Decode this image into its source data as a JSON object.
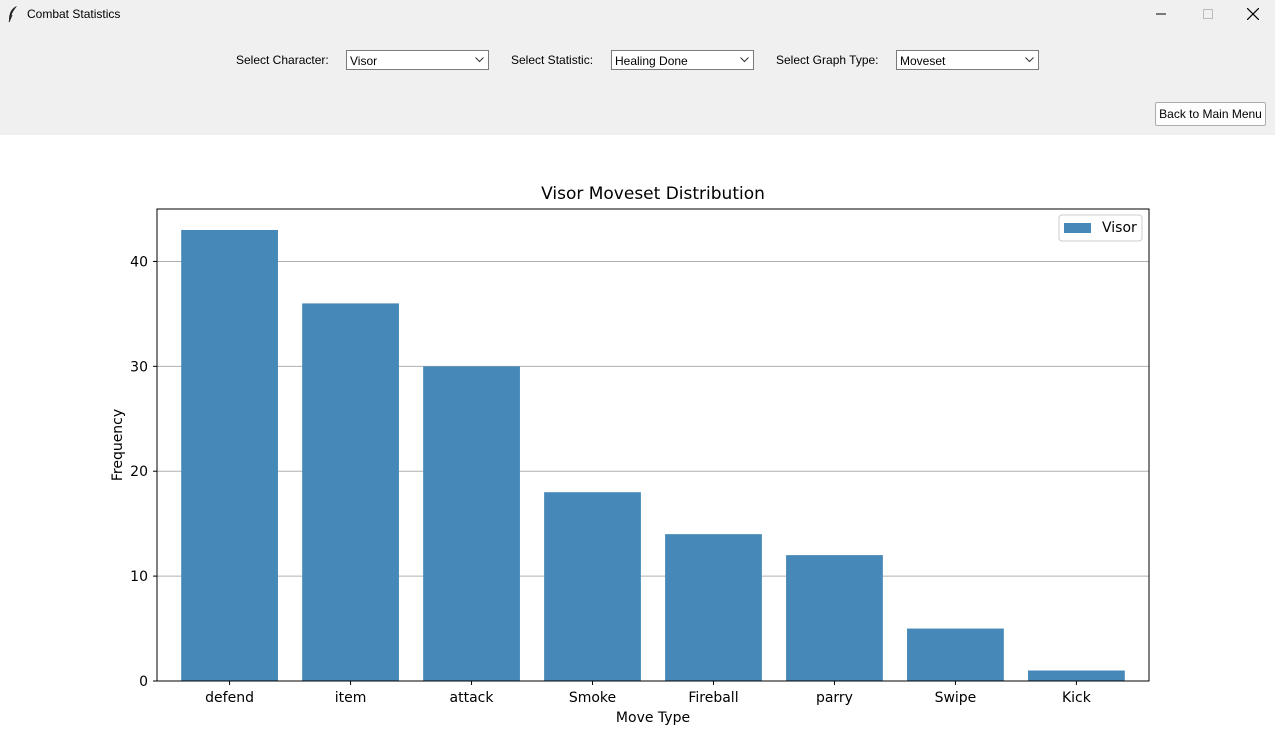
{
  "window": {
    "title": "Combat Statistics",
    "icons": {
      "app": "feather-icon",
      "minimize": "minimize-icon",
      "maximize": "maximize-icon",
      "close": "close-icon"
    }
  },
  "controls": {
    "character_label": "Select Character:",
    "character_value": "Visor",
    "statistic_label": "Select Statistic:",
    "statistic_value": "Healing Done",
    "graph_type_label": "Select Graph Type:",
    "graph_type_value": "Moveset",
    "back_button": "Back to Main Menu"
  },
  "colors": {
    "bar": "#4689b8",
    "window_bg": "#f0f0f0",
    "grid": "#b0b0b0"
  },
  "chart_data": {
    "type": "bar",
    "title": "Visor Moveset Distribution",
    "xlabel": "Move Type",
    "ylabel": "Frequency",
    "categories": [
      "defend",
      "item",
      "attack",
      "Smoke",
      "Fireball",
      "parry",
      "Swipe",
      "Kick"
    ],
    "series": [
      {
        "name": "Visor",
        "values": [
          43,
          36,
          30,
          18,
          14,
          12,
          5,
          1
        ]
      }
    ],
    "yticks": [
      "0",
      "10",
      "20",
      "30",
      "40"
    ],
    "ylim": [
      0,
      45
    ],
    "grid": "y",
    "legend": "top-right"
  }
}
